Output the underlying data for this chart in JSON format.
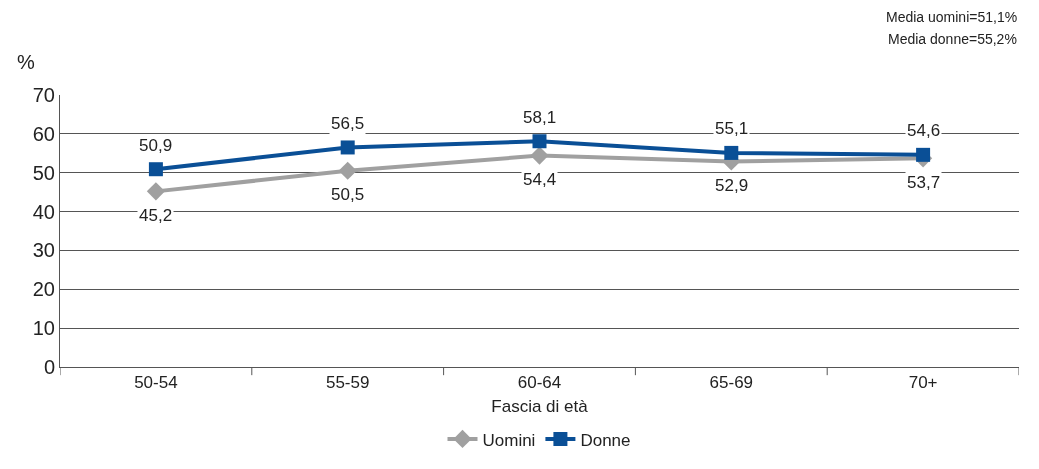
{
  "chart_data": {
    "type": "line",
    "xlabel": "Fascia di età",
    "ylabel": "%",
    "categories": [
      "50-54",
      "55-59",
      "60-64",
      "65-69",
      "70+"
    ],
    "series": [
      {
        "name": "Uomini",
        "color": "#a0a0a0",
        "marker": "diamond",
        "values": [
          45.2,
          50.5,
          54.4,
          52.9,
          53.7
        ],
        "value_labels": [
          "45,2",
          "50,5",
          "54,4",
          "52,9",
          "53,7"
        ]
      },
      {
        "name": "Donne",
        "color": "#0a4f96",
        "marker": "square",
        "values": [
          50.9,
          56.5,
          58.1,
          55.1,
          54.6
        ],
        "value_labels": [
          "50,9",
          "56,5",
          "58,1",
          "55,1",
          "54,6"
        ]
      }
    ],
    "ylim": [
      0,
      70
    ],
    "yticks": [
      0,
      10,
      20,
      30,
      40,
      50,
      60,
      70
    ],
    "grid": "y",
    "legend": "bottom",
    "annotations": [
      "Media uomini=51,1%",
      "Media donne=55,2%"
    ]
  }
}
